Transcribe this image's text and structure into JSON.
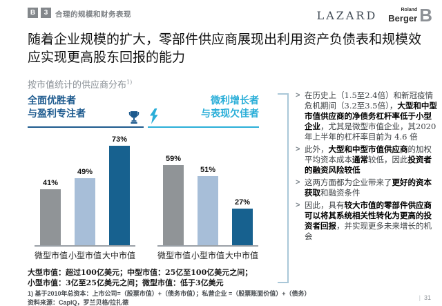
{
  "header": {
    "badge1": "B",
    "badge2": "3",
    "section_label": "合理的规模和财务表现"
  },
  "logos": {
    "lazard": "LAZARD",
    "roland": "Roland",
    "berger": "Berger",
    "b_mark": "B"
  },
  "title": "随着企业规模的扩大，零部件供应商展现出利用资产负债表和规模效应实现更高股东回报的能力",
  "subtitle": {
    "text": "按市值统计的供应商分布",
    "sup": "1)"
  },
  "groups": {
    "winners": {
      "line1": "全面优胜者",
      "line2": "与盈利专注者"
    },
    "underperformers": {
      "line1": "微利增长者",
      "line2": "与表现欠佳者"
    }
  },
  "chart_data": [
    {
      "type": "bar",
      "title": "全面优胜者与盈利专注者",
      "categories": [
        "微型市值",
        "小型市值",
        "大中市值"
      ],
      "values": [
        41,
        49,
        73
      ],
      "data_labels": [
        "41%",
        "49%",
        "73%"
      ],
      "unit": "%",
      "ylim": [
        0,
        80
      ],
      "grid": false,
      "legend": "none",
      "bar_colors": [
        "#909497",
        "#a7bed8",
        "#17618f"
      ]
    },
    {
      "type": "bar",
      "title": "微利增长者与表现欠佳者",
      "categories": [
        "微型市值",
        "小型市值",
        "大中市值"
      ],
      "values": [
        59,
        51,
        27
      ],
      "data_labels": [
        "59%",
        "51%",
        "27%"
      ],
      "unit": "%",
      "ylim": [
        0,
        80
      ],
      "grid": false,
      "legend": "none",
      "bar_colors": [
        "#909497",
        "#a7bed8",
        "#17618f"
      ]
    }
  ],
  "bullet_char": ">",
  "insights": [
    {
      "segments": [
        {
          "t": "在历史上（1.5至2.4倍）和新冠疫情危机期间（3.2至3.5倍），",
          "b": false
        },
        {
          "t": "大型和中型市值供应商的净债务杠杆率低于小型企业",
          "b": true
        },
        {
          "t": "，尤其是微型市值企业，其2020年上半年的杠杆率目前为 4.6 倍",
          "b": false
        }
      ]
    },
    {
      "segments": [
        {
          "t": "此外，",
          "b": false
        },
        {
          "t": "大型和中型市值供应商",
          "b": true
        },
        {
          "t": "的加权平均资本成本",
          "b": false
        },
        {
          "t": "通常",
          "b": true
        },
        {
          "t": "较低，因此",
          "b": false
        },
        {
          "t": "投资者的融资风险较低",
          "b": true
        }
      ]
    },
    {
      "segments": [
        {
          "t": "这两方面都为企业带来了",
          "b": false
        },
        {
          "t": "更好的资本获取",
          "b": true
        },
        {
          "t": "和融资条件",
          "b": false
        }
      ]
    },
    {
      "segments": [
        {
          "t": "因此，具有",
          "b": false
        },
        {
          "t": "较大市值的零部件供应商可以将其系统相关性转化为更高的投资者回报",
          "b": true
        },
        {
          "t": "，并实现更多未来增长的机会",
          "b": false
        }
      ]
    }
  ],
  "definitions": [
    "大型市值：超过100亿美元；中型市值：25亿至100亿美元之间；",
    "小型市值：3亿至25亿美元之间；微型市值：低于3亿美元"
  ],
  "footnote": "1) 基于2010年总资本：上市公司=（股票市值）+（债务市值）；私营企业 =（股票账面价值）+（债务）",
  "source": "资料来源：CapIQ，罗兰贝格/拉扎德",
  "page_number": "31",
  "colors": {
    "accent_dark_blue": "#17618f",
    "accent_cyan": "#2aaed8",
    "bar_gray": "#909497",
    "bar_light_blue": "#a7bed8",
    "bracket_blue": "#a9c7d8",
    "badge_gray": "#83878b"
  }
}
